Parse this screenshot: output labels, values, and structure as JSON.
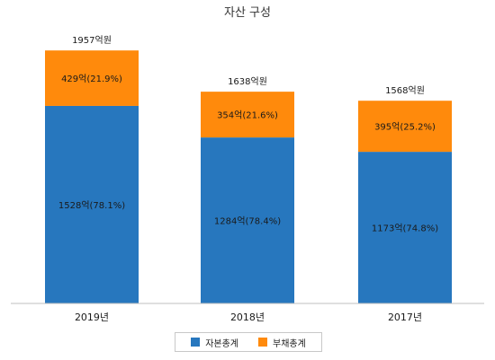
{
  "chart_data": {
    "type": "bar",
    "stacked": true,
    "title": "자산 구성",
    "categories": [
      "2019년",
      "2018년",
      "2017년"
    ],
    "series": [
      {
        "name": "자본총계",
        "values": [
          1528,
          1284,
          1173
        ],
        "labels": [
          "1528억(78.1%)",
          "1284억(78.4%)",
          "1173억(74.8%)"
        ],
        "color": "#2777be"
      },
      {
        "name": "부채총계",
        "values": [
          429,
          354,
          395
        ],
        "labels": [
          "429억(21.9%)",
          "354억(21.6%)",
          "395억(25.2%)"
        ],
        "color": "#ff8a0c"
      }
    ],
    "totals": [
      "1957억원",
      "1638억원",
      "1568억원"
    ],
    "total_values": [
      1957,
      1638,
      1568
    ],
    "ylim": [
      0,
      2250
    ],
    "grid": false,
    "legend_position": "bottom"
  }
}
